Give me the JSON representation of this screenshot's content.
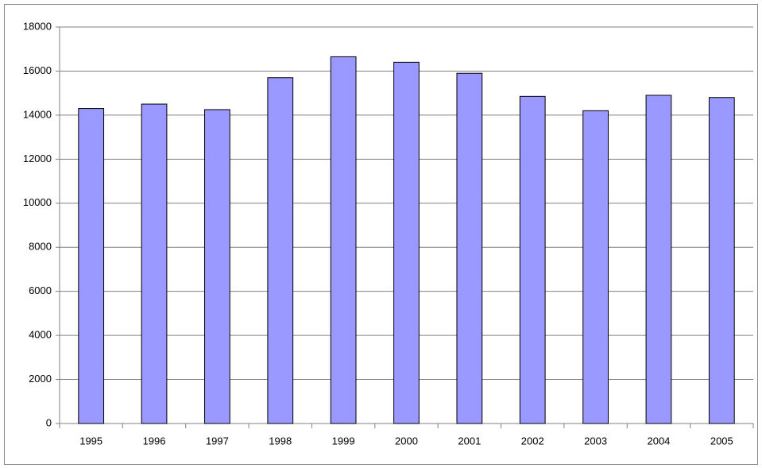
{
  "chart_data": {
    "type": "bar",
    "categories": [
      "1995",
      "1996",
      "1997",
      "1998",
      "1999",
      "2000",
      "2001",
      "2002",
      "2003",
      "2004",
      "2005"
    ],
    "values": [
      14300,
      14500,
      14250,
      15700,
      16650,
      16400,
      15900,
      14850,
      14200,
      14900,
      14800
    ],
    "color": "#9999ff",
    "ylim": [
      0,
      18000
    ],
    "yticks": [
      0,
      2000,
      4000,
      6000,
      8000,
      10000,
      12000,
      14000,
      16000,
      18000
    ],
    "grid": true
  }
}
